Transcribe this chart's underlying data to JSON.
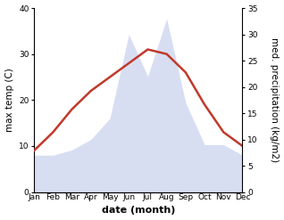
{
  "months": [
    "Jan",
    "Feb",
    "Mar",
    "Apr",
    "May",
    "Jun",
    "Jul",
    "Aug",
    "Sep",
    "Oct",
    "Nov",
    "Dec"
  ],
  "month_indices": [
    1,
    2,
    3,
    4,
    5,
    6,
    7,
    8,
    9,
    10,
    11,
    12
  ],
  "temperature": [
    9,
    13,
    18,
    22,
    25,
    28,
    31,
    30,
    26,
    19,
    13,
    10
  ],
  "precipitation": [
    7,
    7,
    8,
    10,
    14,
    30,
    22,
    33,
    17,
    9,
    9,
    7
  ],
  "temp_color": "#c0392b",
  "precip_color": "#b8c4e8",
  "background_color": "#ffffff",
  "temp_ylim": [
    0,
    40
  ],
  "precip_ylim": [
    0,
    35
  ],
  "temp_yticks": [
    0,
    10,
    20,
    30,
    40
  ],
  "precip_yticks": [
    0,
    5,
    10,
    15,
    20,
    25,
    30,
    35
  ],
  "xlabel": "date (month)",
  "ylabel_left": "max temp (C)",
  "ylabel_right": "med. precipitation (kg/m2)",
  "temp_linewidth": 1.8,
  "xlabel_fontsize": 8,
  "ylabel_fontsize": 7.5,
  "tick_fontsize": 6.5,
  "precip_alpha": 0.55
}
